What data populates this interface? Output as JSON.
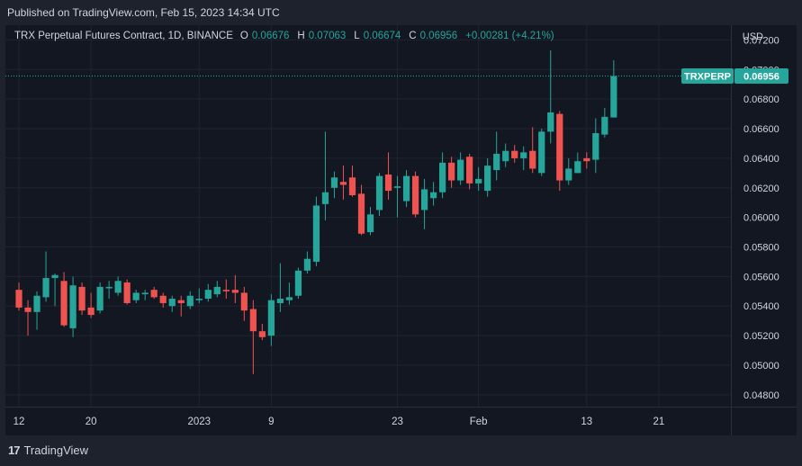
{
  "header": {
    "published": "Published on TradingView.com, Feb 15, 2023 14:34 UTC"
  },
  "legend": {
    "symbol": "TRX Perpetual Futures Contract, 1D, BINANCE",
    "open_label": "O",
    "open": "0.06676",
    "high_label": "H",
    "high": "0.07063",
    "low_label": "L",
    "low": "0.06674",
    "close_label": "C",
    "close": "0.06956",
    "change": "+0.00281 (+4.21%)"
  },
  "currency": "USD",
  "price_tag": {
    "ticker": "TRXPERP",
    "price": "0.06956"
  },
  "footer": {
    "logo": "17",
    "brand": "TradingView"
  },
  "colors": {
    "up": "#26a69a",
    "down": "#ef5350",
    "background": "#131722",
    "frame": "#1e222d",
    "grid": "#1f2430",
    "text": "#d1d4dc"
  },
  "chart_data": {
    "type": "candlestick",
    "y_axis": {
      "ticks": [
        "0.07200",
        "0.07000",
        "0.06800",
        "0.06600",
        "0.06400",
        "0.06200",
        "0.06000",
        "0.05800",
        "0.05600",
        "0.05400",
        "0.05200",
        "0.05000",
        "0.04800"
      ],
      "ylim": [
        0.0472,
        0.073
      ]
    },
    "x_axis": {
      "ticks": [
        {
          "label": "12",
          "day": 0
        },
        {
          "label": "20",
          "day": 8
        },
        {
          "label": "2023",
          "day": 20
        },
        {
          "label": "9",
          "day": 28
        },
        {
          "label": "23",
          "day": 42
        },
        {
          "label": "Feb",
          "day": 51
        },
        {
          "label": "13",
          "day": 63
        },
        {
          "label": "21",
          "day": 71
        }
      ],
      "xlim": [
        -1.5,
        79
      ]
    },
    "last_price": 0.06956,
    "grid": true,
    "candles": [
      {
        "d": 0,
        "o": 0.0551,
        "h": 0.0556,
        "l": 0.0537,
        "c": 0.0539
      },
      {
        "d": 1,
        "o": 0.0539,
        "h": 0.0544,
        "l": 0.052,
        "c": 0.0536
      },
      {
        "d": 2,
        "o": 0.0536,
        "h": 0.055,
        "l": 0.0524,
        "c": 0.0547
      },
      {
        "d": 3,
        "o": 0.0546,
        "h": 0.0577,
        "l": 0.0543,
        "c": 0.0559
      },
      {
        "d": 4,
        "o": 0.0559,
        "h": 0.0562,
        "l": 0.054,
        "c": 0.0561
      },
      {
        "d": 5,
        "o": 0.0557,
        "h": 0.0563,
        "l": 0.0526,
        "c": 0.0527
      },
      {
        "d": 6,
        "o": 0.0525,
        "h": 0.056,
        "l": 0.0519,
        "c": 0.0554
      },
      {
        "d": 7,
        "o": 0.0553,
        "h": 0.0556,
        "l": 0.0534,
        "c": 0.0537
      },
      {
        "d": 8,
        "o": 0.0539,
        "h": 0.0549,
        "l": 0.0532,
        "c": 0.0534
      },
      {
        "d": 9,
        "o": 0.0537,
        "h": 0.0556,
        "l": 0.0535,
        "c": 0.0553
      },
      {
        "d": 10,
        "o": 0.0552,
        "h": 0.0557,
        "l": 0.0545,
        "c": 0.0553
      },
      {
        "d": 11,
        "o": 0.0549,
        "h": 0.056,
        "l": 0.0547,
        "c": 0.0557
      },
      {
        "d": 12,
        "o": 0.0556,
        "h": 0.0558,
        "l": 0.0541,
        "c": 0.0542
      },
      {
        "d": 13,
        "o": 0.0544,
        "h": 0.0551,
        "l": 0.0542,
        "c": 0.0549
      },
      {
        "d": 14,
        "o": 0.0548,
        "h": 0.0551,
        "l": 0.0544,
        "c": 0.0549
      },
      {
        "d": 15,
        "o": 0.0551,
        "h": 0.0553,
        "l": 0.0545,
        "c": 0.0546
      },
      {
        "d": 16,
        "o": 0.0547,
        "h": 0.0549,
        "l": 0.0539,
        "c": 0.0542
      },
      {
        "d": 17,
        "o": 0.054,
        "h": 0.0547,
        "l": 0.0536,
        "c": 0.0545
      },
      {
        "d": 18,
        "o": 0.0544,
        "h": 0.0547,
        "l": 0.0533,
        "c": 0.0542
      },
      {
        "d": 19,
        "o": 0.054,
        "h": 0.055,
        "l": 0.0538,
        "c": 0.0547
      },
      {
        "d": 20,
        "o": 0.0544,
        "h": 0.0552,
        "l": 0.0542,
        "c": 0.0545
      },
      {
        "d": 21,
        "o": 0.0545,
        "h": 0.0555,
        "l": 0.0543,
        "c": 0.0551
      },
      {
        "d": 22,
        "o": 0.0548,
        "h": 0.0557,
        "l": 0.0546,
        "c": 0.0553
      },
      {
        "d": 23,
        "o": 0.0551,
        "h": 0.0558,
        "l": 0.0545,
        "c": 0.055
      },
      {
        "d": 24,
        "o": 0.0551,
        "h": 0.0561,
        "l": 0.0542,
        "c": 0.0549
      },
      {
        "d": 25,
        "o": 0.0549,
        "h": 0.0553,
        "l": 0.053,
        "c": 0.0537
      },
      {
        "d": 26,
        "o": 0.0538,
        "h": 0.0544,
        "l": 0.0494,
        "c": 0.0523
      },
      {
        "d": 27,
        "o": 0.0523,
        "h": 0.0528,
        "l": 0.0517,
        "c": 0.0519
      },
      {
        "d": 28,
        "o": 0.052,
        "h": 0.0548,
        "l": 0.0513,
        "c": 0.0544
      },
      {
        "d": 29,
        "o": 0.0542,
        "h": 0.0569,
        "l": 0.0536,
        "c": 0.0545
      },
      {
        "d": 30,
        "o": 0.0544,
        "h": 0.0556,
        "l": 0.0541,
        "c": 0.0546
      },
      {
        "d": 31,
        "o": 0.0547,
        "h": 0.0566,
        "l": 0.0545,
        "c": 0.0564
      },
      {
        "d": 32,
        "o": 0.0564,
        "h": 0.0577,
        "l": 0.0562,
        "c": 0.0572
      },
      {
        "d": 33,
        "o": 0.057,
        "h": 0.0614,
        "l": 0.0567,
        "c": 0.0608
      },
      {
        "d": 34,
        "o": 0.0609,
        "h": 0.0658,
        "l": 0.0598,
        "c": 0.0617
      },
      {
        "d": 35,
        "o": 0.062,
        "h": 0.0631,
        "l": 0.0613,
        "c": 0.0627
      },
      {
        "d": 36,
        "o": 0.0624,
        "h": 0.0635,
        "l": 0.0612,
        "c": 0.0622
      },
      {
        "d": 37,
        "o": 0.0627,
        "h": 0.0635,
        "l": 0.0614,
        "c": 0.0615
      },
      {
        "d": 38,
        "o": 0.0616,
        "h": 0.0622,
        "l": 0.0588,
        "c": 0.0589
      },
      {
        "d": 39,
        "o": 0.059,
        "h": 0.0607,
        "l": 0.0588,
        "c": 0.0602
      },
      {
        "d": 40,
        "o": 0.0605,
        "h": 0.063,
        "l": 0.0601,
        "c": 0.0628
      },
      {
        "d": 41,
        "o": 0.0629,
        "h": 0.0644,
        "l": 0.0612,
        "c": 0.0618
      },
      {
        "d": 42,
        "o": 0.062,
        "h": 0.0628,
        "l": 0.06,
        "c": 0.0621
      },
      {
        "d": 43,
        "o": 0.0611,
        "h": 0.0632,
        "l": 0.0607,
        "c": 0.0628
      },
      {
        "d": 44,
        "o": 0.0628,
        "h": 0.0631,
        "l": 0.06,
        "c": 0.0602
      },
      {
        "d": 45,
        "o": 0.0605,
        "h": 0.0626,
        "l": 0.0592,
        "c": 0.0619
      },
      {
        "d": 46,
        "o": 0.0613,
        "h": 0.0624,
        "l": 0.0608,
        "c": 0.0617
      },
      {
        "d": 47,
        "o": 0.0617,
        "h": 0.0644,
        "l": 0.0613,
        "c": 0.0637
      },
      {
        "d": 48,
        "o": 0.0637,
        "h": 0.0641,
        "l": 0.062,
        "c": 0.0625
      },
      {
        "d": 49,
        "o": 0.0625,
        "h": 0.0644,
        "l": 0.0622,
        "c": 0.0639
      },
      {
        "d": 50,
        "o": 0.0641,
        "h": 0.0643,
        "l": 0.0619,
        "c": 0.0623
      },
      {
        "d": 51,
        "o": 0.0623,
        "h": 0.0634,
        "l": 0.0618,
        "c": 0.0626
      },
      {
        "d": 52,
        "o": 0.0618,
        "h": 0.064,
        "l": 0.0614,
        "c": 0.0635
      },
      {
        "d": 53,
        "o": 0.0632,
        "h": 0.0658,
        "l": 0.0625,
        "c": 0.0643
      },
      {
        "d": 54,
        "o": 0.0638,
        "h": 0.065,
        "l": 0.0634,
        "c": 0.0645
      },
      {
        "d": 55,
        "o": 0.0645,
        "h": 0.0649,
        "l": 0.0637,
        "c": 0.064
      },
      {
        "d": 56,
        "o": 0.064,
        "h": 0.0648,
        "l": 0.0632,
        "c": 0.0644
      },
      {
        "d": 57,
        "o": 0.0645,
        "h": 0.0661,
        "l": 0.063,
        "c": 0.0633
      },
      {
        "d": 58,
        "o": 0.063,
        "h": 0.066,
        "l": 0.0628,
        "c": 0.0658
      },
      {
        "d": 59,
        "o": 0.0658,
        "h": 0.0713,
        "l": 0.065,
        "c": 0.0671
      },
      {
        "d": 60,
        "o": 0.067,
        "h": 0.0672,
        "l": 0.0618,
        "c": 0.0625
      },
      {
        "d": 61,
        "o": 0.0625,
        "h": 0.064,
        "l": 0.0622,
        "c": 0.0633
      },
      {
        "d": 62,
        "o": 0.063,
        "h": 0.0644,
        "l": 0.063,
        "c": 0.0638
      },
      {
        "d": 63,
        "o": 0.064,
        "h": 0.0644,
        "l": 0.0633,
        "c": 0.0638
      },
      {
        "d": 64,
        "o": 0.0639,
        "h": 0.0667,
        "l": 0.063,
        "c": 0.0657
      },
      {
        "d": 65,
        "o": 0.0656,
        "h": 0.0674,
        "l": 0.0654,
        "c": 0.0668
      },
      {
        "d": 66,
        "o": 0.06676,
        "h": 0.07063,
        "l": 0.06674,
        "c": 0.06956
      }
    ]
  }
}
